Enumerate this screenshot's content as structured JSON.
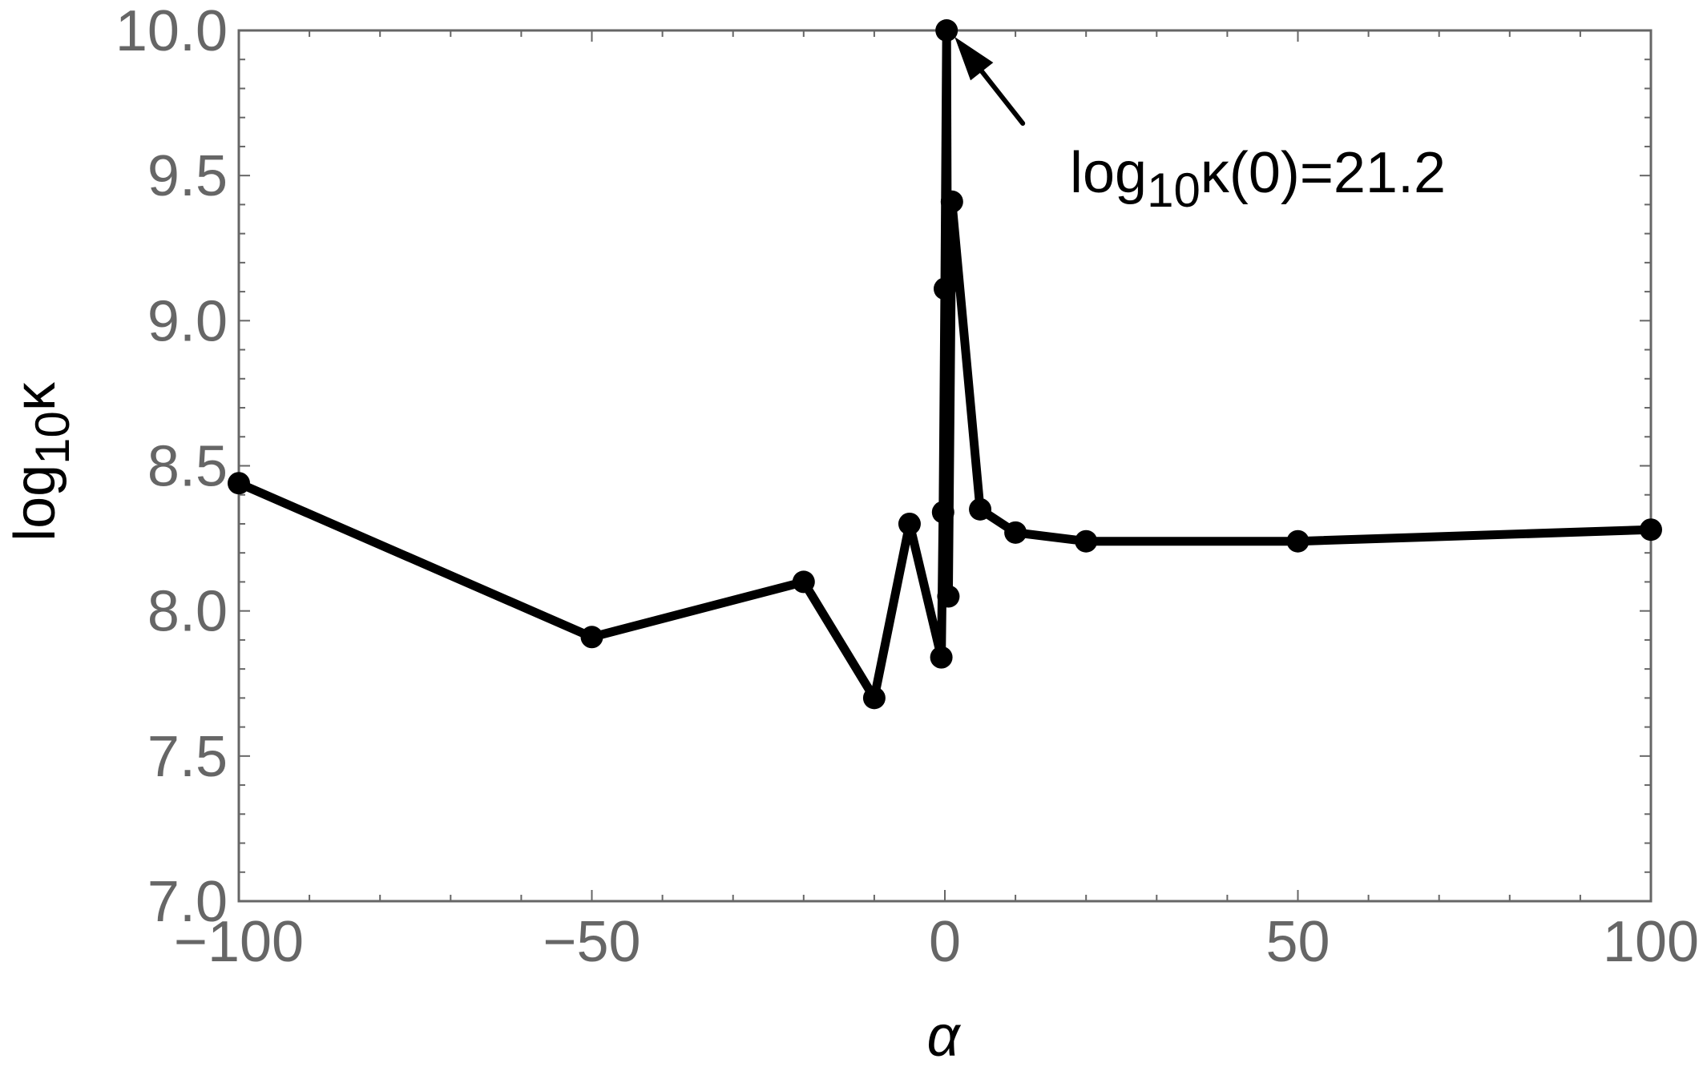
{
  "chart_data": {
    "type": "line",
    "xlabel": "α",
    "ylabel": {
      "base": "log",
      "subscript": "10",
      "symbol": "κ"
    },
    "xlim": [
      -100,
      100
    ],
    "ylim": [
      7.0,
      10.0
    ],
    "x_ticks": [
      -100,
      -50,
      0,
      50,
      100
    ],
    "x_tick_labels": [
      "−100",
      "−50",
      "0",
      "50",
      "100"
    ],
    "y_ticks": [
      7.0,
      7.5,
      8.0,
      8.5,
      9.0,
      9.5,
      10.0
    ],
    "y_tick_labels": [
      "7.0",
      "7.5",
      "8.0",
      "8.5",
      "9.0",
      "9.5",
      "10.0"
    ],
    "grid": false,
    "markers": true,
    "line_color": "#000000",
    "series": [
      {
        "x": [
          -100,
          -50,
          -20,
          -10,
          -5,
          -0.5,
          -0.25,
          0,
          0.25,
          0.5,
          1,
          5,
          10,
          20,
          50,
          100
        ],
        "y": [
          8.44,
          7.91,
          8.1,
          7.7,
          8.3,
          7.84,
          8.34,
          9.11,
          10.0,
          8.05,
          9.41,
          8.35,
          8.27,
          8.24,
          8.24,
          8.28
        ]
      }
    ],
    "annotation": {
      "text_base": "log",
      "text_subscript": "10",
      "text_rest": "κ(0)=21.2",
      "points_to": {
        "x": 0.25,
        "y": 10.0
      }
    }
  }
}
